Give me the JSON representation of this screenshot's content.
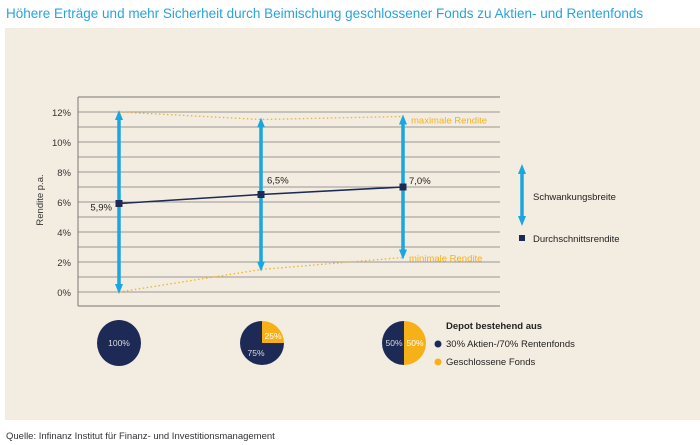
{
  "title": "Höhere Erträge und mehr Sicherheit durch Beimischung geschlossener Fonds zu Aktien- und Rentenfonds",
  "source": "Quelle: Infinanz Institut für Finanz- und Investitionsmanagement",
  "colors": {
    "arrow": "#1ba6e0",
    "line": "#1c2a55",
    "gold": "#f6b119",
    "grid": "#7a7a7a",
    "navy": "#1c2a55"
  },
  "chart_data": {
    "type": "line",
    "ylabel": "Rendite p.a.",
    "ylim": [
      0,
      12
    ],
    "yticks": [
      "0%",
      "2%",
      "4%",
      "6%",
      "8%",
      "10%",
      "12%"
    ],
    "grid": true,
    "series": [
      {
        "name": "Durchschnittsrendite",
        "values": [
          5.9,
          6.5,
          7.0
        ],
        "labels": [
          "5,9%",
          "6,5%",
          "7,0%"
        ]
      },
      {
        "name": "maximale Rendite",
        "values": [
          12,
          11.5,
          11.7
        ]
      },
      {
        "name": "minimale Rendite",
        "values": [
          0,
          1.5,
          2.3
        ]
      }
    ],
    "annotations": {
      "max": "maximale Rendite",
      "min": "minimale Rendite"
    },
    "legend": {
      "range": "Schwankungsbreite",
      "avg": "Durchschnittsrendite"
    },
    "pies": [
      {
        "slices": [
          {
            "name": "30% Aktien-/70% Rentenfonds",
            "value": 100,
            "label": "100%"
          }
        ]
      },
      {
        "slices": [
          {
            "name": "30% Aktien-/70% Rentenfonds",
            "value": 75,
            "label": "75%"
          },
          {
            "name": "Geschlossene Fonds",
            "value": 25,
            "label": "25%"
          }
        ]
      },
      {
        "slices": [
          {
            "name": "30% Aktien-/70% Rentenfonds",
            "value": 50,
            "label": "50%"
          },
          {
            "name": "Geschlossene Fonds",
            "value": 50,
            "label": "50%"
          }
        ]
      }
    ],
    "pie_legend": {
      "title": "Depot bestehend aus",
      "items": [
        "30% Aktien-/70% Rentenfonds",
        "Geschlossene Fonds"
      ]
    }
  }
}
